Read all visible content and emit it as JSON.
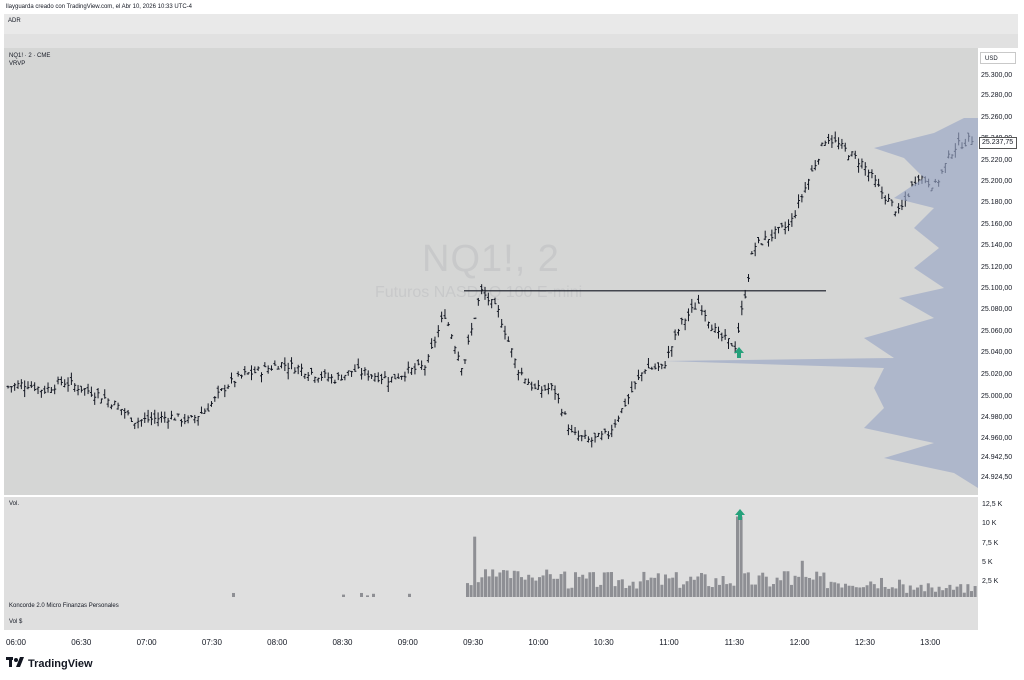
{
  "header": {
    "caption": "llayguarda creado con TradingView.com, el Abr 10, 2026 10:33 UTC-4"
  },
  "adr_label": "ADR",
  "symbol": {
    "line1": "NQ1! · 2 · CME",
    "line2": "VRVP",
    "watermark": "NQ1!, 2",
    "description": "Futuros NASDAQ 100 E-mini"
  },
  "currency": "USD",
  "last_price": "25.237,75",
  "price_ticks": [
    "25.300,00",
    "25.280,00",
    "25.260,00",
    "25.240,00",
    "25.220,00",
    "25.200,00",
    "25.180,00",
    "25.160,00",
    "25.140,00",
    "25.120,00",
    "25.100,00",
    "25.080,00",
    "25.060,00",
    "25.040,00",
    "25.020,00",
    "25.000,00",
    "24.980,00",
    "24.960,00",
    "24.942,50",
    "24.924,50"
  ],
  "volume_pane": {
    "label": "Vol.",
    "ticks": [
      "12,5 K",
      "10 K",
      "7,5 K",
      "5 K",
      "2,5 K"
    ]
  },
  "konkorde_label": "Koncorde 2.0 Micro Finanzas Personales",
  "vol_dollar_label": "Vol $",
  "time_labels": [
    "06:00",
    "06:30",
    "07:00",
    "07:30",
    "08:00",
    "08:30",
    "09:00",
    "09:30",
    "10:00",
    "10:30",
    "11:00",
    "11:30",
    "12:00",
    "12:30",
    "13:00"
  ],
  "brand": "TradingView",
  "colors": {
    "bar": "#131722",
    "volume": "#8e8f94",
    "profile": "#9aa6c6",
    "arrow": "#26a17b",
    "pane": "#d5d6d5"
  },
  "icons": {
    "signal": "arrow-up-icon",
    "logo": "tradingview-logo-icon"
  },
  "chart_data": {
    "type": "ohlc",
    "timeframe": "2m",
    "ylim": [
      24915,
      25320
    ],
    "x": [
      "06:00",
      "06:30",
      "07:00",
      "07:30",
      "08:00",
      "08:30",
      "09:00",
      "09:30",
      "10:00",
      "10:30",
      "11:00",
      "11:30",
      "12:00",
      "12:30",
      "13:00"
    ],
    "close_path": [
      25013,
      25016,
      25010,
      25018,
      25012,
      25006,
      24996,
      24982,
      24984,
      24986,
      24982,
      24994,
      25014,
      25024,
      25028,
      25034,
      25030,
      25024,
      25020,
      25028,
      25024,
      25020,
      25027,
      25032,
      25080,
      25030,
      25100,
      25080,
      25030,
      25010,
      25012,
      24970,
      24964,
      24970,
      25000,
      25030,
      25030,
      25070,
      25090,
      25060,
      25050,
      25140,
      25150,
      25160,
      25200,
      25240,
      25228,
      25215,
      25190,
      25170,
      25205,
      25195,
      25230,
      25237.75
    ],
    "horizontal_level": 25100,
    "signal_arrows_time": [
      "11:30"
    ],
    "volume_k": [
      0.3,
      0,
      0.5,
      0,
      0.3,
      0.2,
      0.5,
      7.5,
      2.5,
      3,
      2.4,
      2.2,
      2.8,
      2.5,
      2.4,
      2.2,
      2.3,
      2.2,
      2.6,
      2.5,
      2.4,
      3,
      10,
      3.2,
      2.8,
      3,
      4,
      3.5,
      2.8,
      2.2,
      1.8,
      2.2,
      1.5,
      1.2,
      1.5,
      2,
      1.6
    ]
  }
}
